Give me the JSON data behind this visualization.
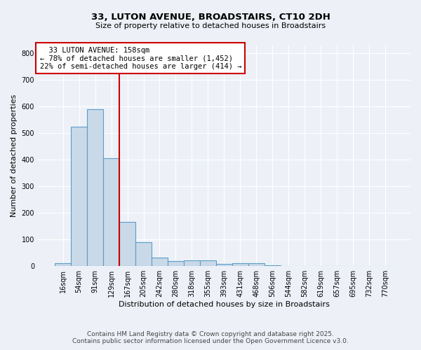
{
  "title1": "33, LUTON AVENUE, BROADSTAIRS, CT10 2DH",
  "title2": "Size of property relative to detached houses in Broadstairs",
  "xlabel": "Distribution of detached houses by size in Broadstairs",
  "ylabel": "Number of detached properties",
  "categories": [
    "16sqm",
    "54sqm",
    "91sqm",
    "129sqm",
    "167sqm",
    "205sqm",
    "242sqm",
    "280sqm",
    "318sqm",
    "355sqm",
    "393sqm",
    "431sqm",
    "468sqm",
    "506sqm",
    "544sqm",
    "582sqm",
    "619sqm",
    "657sqm",
    "695sqm",
    "732sqm",
    "770sqm"
  ],
  "values": [
    10,
    525,
    590,
    405,
    167,
    90,
    32,
    20,
    22,
    22,
    8,
    10,
    10,
    4,
    0,
    0,
    0,
    0,
    0,
    0,
    0
  ],
  "bar_color": "#c9d9e8",
  "bar_edge_color": "#5a9ec9",
  "bar_edge_width": 0.8,
  "red_line_index": 4,
  "red_line_color": "#cc0000",
  "annotation_text": "  33 LUTON AVENUE: 158sqm  \n← 78% of detached houses are smaller (1,452)\n22% of semi-detached houses are larger (414) →",
  "annotation_box_color": "#ffffff",
  "annotation_box_edge": "#cc0000",
  "ylim": [
    0,
    830
  ],
  "yticks": [
    0,
    100,
    200,
    300,
    400,
    500,
    600,
    700,
    800
  ],
  "footer1": "Contains HM Land Registry data © Crown copyright and database right 2025.",
  "footer2": "Contains public sector information licensed under the Open Government Licence v3.0.",
  "bg_color": "#edf1f7",
  "plot_bg_color": "#edf1f7",
  "title1_fontsize": 9.5,
  "title2_fontsize": 8,
  "annotation_fontsize": 7.5,
  "ylabel_fontsize": 8,
  "xlabel_fontsize": 8,
  "tick_fontsize": 7
}
